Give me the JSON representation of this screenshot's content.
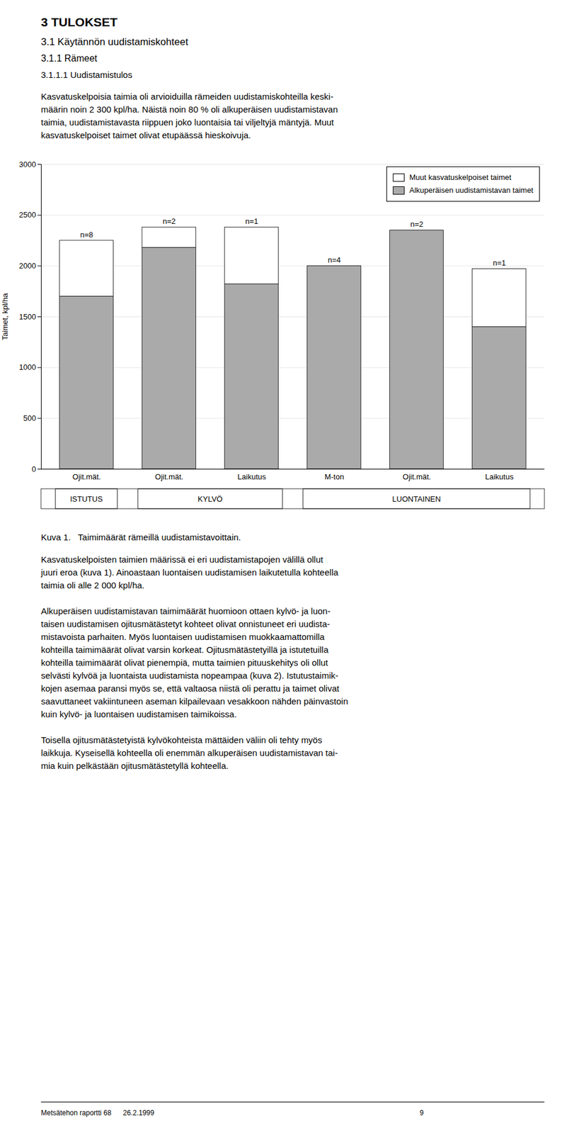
{
  "page": {
    "headings": [
      "3  TULOKSET",
      "3.1  Käytännön uudistamiskohteet",
      "3.1.1  Rämeet",
      "3.1.1.1  Uudistamistulos"
    ],
    "text_before": "Kasvatuskelpoisia taimia oli arvioiduilla rämeiden uudistamiskohteilla keski-\nmäärin noin 2 300 kpl/ha. Näistä noin 80 % oli alkuperäisen uudistamistavan\ntaimia, uudistamistavasta riippuen joko luontaisia tai viljeltyjä mäntyjä. Muut\nkasvatuskelpoiset taimet olivat etupäässä hieskoivuja.",
    "caption": "Kuva 1.   Taimimäärät rämeillä uudistamistavoittain.",
    "text_after": [
      "Kasvatuskelpoisten taimien määrissä ei eri uudistamistapojen välillä ollut\njuuri eroa (kuva 1). Ainoastaan luontaisen uudistamisen laikutetulla kohteella\ntaimia oli alle 2 000 kpl/ha.",
      "Alkuperäisen uudistamistavan taimimäärät huomioon ottaen kylvö- ja luon-\ntaisen uudistamisen ojitusmätästetyt kohteet olivat onnistuneet eri uudista-\nmistavoista parhaiten. Myös luontaisen uudistamisen muokkaamattomilla\nkohteilla taimimäärät olivat varsin korkeat. Ojitusmätästetyillä ja istutetuilla\nkohteilla taimimäärät olivat pienempiä, mutta taimien pituuskehitys oli ollut\nselvästi kylvöä ja luontaista uudistamista nopeampaa (kuva 2). Istutustaimik-\nkojen asemaa paransi myös se, että valtaosa niistä oli perattu ja taimet olivat\nsaavuttaneet vakiintuneen aseman kilpailevaan vesakkoon nähden päinvastoin\nkuin kylvö- ja luontaisen uudistamisen taimikoissa.",
      "Toisella ojitusmätästetyistä kylvökohteista mättäiden väliin oli tehty myös\nlaikkuja. Kyseisellä kohteella oli enemmän alkuperäisen uudistamistavan tai-\nmia kuin pelkästään ojitusmätästetyllä kohteella."
    ],
    "footer": "Metsätehon raportti 68      26.2.1999                                                                                                                                        9"
  },
  "chart_data": {
    "type": "bar",
    "stacked": true,
    "categories": [
      "Ojit.mät.",
      "Ojit.mät.",
      "Laikutus",
      "M-ton",
      "Ojit.mät.",
      "Laikutus"
    ],
    "groups": [
      "ISTUTUS",
      "KYLVÖ",
      "KYLVÖ",
      "LUONTAINEN",
      "LUONTAINEN",
      "LUONTAINEN"
    ],
    "series": [
      {
        "name": "Alkuperäisen uudistamistavan taimet",
        "color": "#aaaaaa",
        "values": [
          1700,
          2180,
          1820,
          2000,
          2350,
          1400
        ]
      },
      {
        "name": "Muut kasvatuskelpoiset taimet",
        "color": "#ffffff",
        "values": [
          550,
          200,
          560,
          0,
          0,
          570
        ]
      }
    ],
    "annotations": [
      "n=8",
      "n=2",
      "n=1",
      "n=4",
      "n=2",
      "n=1"
    ],
    "ylabel": "Taimet, kpl/ha",
    "ylim": [
      0,
      3000
    ],
    "yticks": [
      0,
      500,
      1000,
      1500,
      2000,
      2500,
      3000
    ],
    "grid": true,
    "legend": "upper right"
  }
}
